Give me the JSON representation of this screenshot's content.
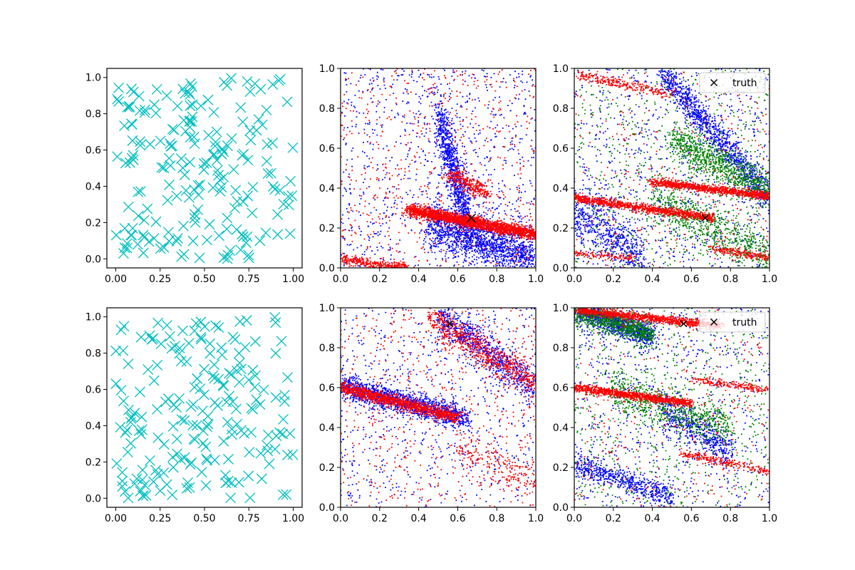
{
  "figure": {
    "background": "#ffffff"
  },
  "colors": {
    "cyan": "#00bfbf",
    "blue": "#0000ff",
    "red": "#ff0000",
    "green": "#008000",
    "truth": "#000000"
  },
  "chart_data": [
    {
      "id": "r0c0",
      "type": "scatter",
      "marker": "x-large",
      "color": "cyan",
      "xlim": [
        -0.05,
        1.05
      ],
      "ylim": [
        -0.05,
        1.05
      ],
      "xticks": [
        0,
        0.25,
        0.5,
        0.75,
        1.0
      ],
      "xtick_labels": [
        "0.00",
        "0.25",
        "0.50",
        "0.75",
        "1.00"
      ],
      "yticks": [
        0,
        0.2,
        0.4,
        0.6,
        0.8,
        1.0
      ],
      "ytick_labels": [
        "0.0",
        "0.2",
        "0.4",
        "0.6",
        "0.8",
        "1.0"
      ],
      "series": [
        {
          "kind": "uniform",
          "count": 200,
          "seed": 11
        }
      ]
    },
    {
      "id": "r0c1",
      "type": "scatter",
      "marker": "dot",
      "xlim": [
        0,
        1
      ],
      "ylim": [
        0,
        1
      ],
      "xticks": [
        0,
        0.2,
        0.4,
        0.6,
        0.8,
        1.0
      ],
      "xtick_labels": [
        "0.0",
        "0.2",
        "0.4",
        "0.6",
        "0.8",
        "1.0"
      ],
      "yticks": [
        0,
        0.2,
        0.4,
        0.6,
        0.8,
        1.0
      ],
      "ytick_labels": [
        "0.0",
        "0.2",
        "0.4",
        "0.6",
        "0.8",
        "1.0"
      ],
      "truth": {
        "x": 0.67,
        "y": 0.25,
        "size": "large"
      },
      "series": [
        {
          "color": "blue",
          "seed": 21,
          "clusters": [
            {
              "count": 1600,
              "x0": 0.45,
              "x1": 1.0,
              "y0": 0.22,
              "y1": 0.05,
              "spread": 0.06
            },
            {
              "count": 900,
              "x0": 0.5,
              "x1": 0.65,
              "y0": 0.75,
              "y1": 0.25,
              "spread": 0.08
            },
            {
              "count": 900,
              "kind": "uniform"
            }
          ]
        },
        {
          "color": "red",
          "seed": 22,
          "clusters": [
            {
              "count": 2200,
              "x0": 0.35,
              "x1": 1.0,
              "y0": 0.29,
              "y1": 0.17,
              "spread": 0.015
            },
            {
              "count": 350,
              "x0": 0.0,
              "x1": 0.35,
              "y0": 0.04,
              "y1": 0.0,
              "spread": 0.012
            },
            {
              "count": 300,
              "x0": 0.55,
              "x1": 0.75,
              "y0": 0.47,
              "y1": 0.38,
              "spread": 0.02
            },
            {
              "count": 600,
              "kind": "uniform"
            }
          ]
        }
      ]
    },
    {
      "id": "r0c2",
      "type": "scatter",
      "marker": "dot",
      "xlim": [
        0,
        1
      ],
      "ylim": [
        0,
        1
      ],
      "xticks": [
        0,
        0.2,
        0.4,
        0.6,
        0.8,
        1.0
      ],
      "xtick_labels": [
        "0.0",
        "0.2",
        "0.4",
        "0.6",
        "0.8",
        "1.0"
      ],
      "yticks": [
        0,
        0.2,
        0.4,
        0.6,
        0.8,
        1.0
      ],
      "ytick_labels": [
        "0.0",
        "0.2",
        "0.4",
        "0.6",
        "0.8",
        "1.0"
      ],
      "truth": {
        "x": 0.67,
        "y": 0.25,
        "size": "small"
      },
      "legend": {
        "label": "truth",
        "loc": "upper right"
      },
      "series": [
        {
          "color": "blue",
          "seed": 31,
          "clusters": [
            {
              "count": 1100,
              "x0": 0.45,
              "x1": 1.0,
              "y0": 0.98,
              "y1": 0.35,
              "spread": 0.04
            },
            {
              "count": 600,
              "x0": 0.0,
              "x1": 0.35,
              "y0": 0.3,
              "y1": 0.05,
              "spread": 0.07
            },
            {
              "count": 800,
              "kind": "uniform"
            }
          ]
        },
        {
          "color": "green",
          "seed": 32,
          "clusters": [
            {
              "count": 900,
              "x0": 0.5,
              "x1": 1.0,
              "y0": 0.65,
              "y1": 0.38,
              "spread": 0.05
            },
            {
              "count": 700,
              "x0": 0.4,
              "x1": 1.0,
              "y0": 0.35,
              "y1": 0.05,
              "spread": 0.06
            },
            {
              "count": 700,
              "kind": "uniform"
            }
          ]
        },
        {
          "color": "red",
          "seed": 33,
          "clusters": [
            {
              "count": 1000,
              "x0": 0.0,
              "x1": 0.7,
              "y0": 0.35,
              "y1": 0.25,
              "spread": 0.01
            },
            {
              "count": 1000,
              "x0": 0.4,
              "x1": 1.0,
              "y0": 0.43,
              "y1": 0.36,
              "spread": 0.01
            },
            {
              "count": 250,
              "x0": 0.0,
              "x1": 0.5,
              "y0": 0.97,
              "y1": 0.87,
              "spread": 0.012
            },
            {
              "count": 200,
              "x0": 0.7,
              "x1": 1.0,
              "y0": 0.1,
              "y1": 0.05,
              "spread": 0.01
            },
            {
              "count": 120,
              "x0": 0.0,
              "x1": 0.3,
              "y0": 0.07,
              "y1": 0.05,
              "spread": 0.008
            },
            {
              "count": 300,
              "kind": "uniform"
            }
          ]
        }
      ]
    },
    {
      "id": "r1c0",
      "type": "scatter",
      "marker": "x-large",
      "color": "cyan",
      "xlim": [
        -0.05,
        1.05
      ],
      "ylim": [
        -0.05,
        1.05
      ],
      "xticks": [
        0,
        0.25,
        0.5,
        0.75,
        1.0
      ],
      "xtick_labels": [
        "0.00",
        "0.25",
        "0.50",
        "0.75",
        "1.00"
      ],
      "yticks": [
        0,
        0.2,
        0.4,
        0.6,
        0.8,
        1.0
      ],
      "ytick_labels": [
        "0.0",
        "0.2",
        "0.4",
        "0.6",
        "0.8",
        "1.0"
      ],
      "series": [
        {
          "kind": "uniform",
          "count": 200,
          "seed": 12
        }
      ]
    },
    {
      "id": "r1c1",
      "type": "scatter",
      "marker": "dot",
      "xlim": [
        0,
        1
      ],
      "ylim": [
        0,
        1
      ],
      "xticks": [
        0,
        0.2,
        0.4,
        0.6,
        0.8,
        1.0
      ],
      "xtick_labels": [
        "0.0",
        "0.2",
        "0.4",
        "0.6",
        "0.8",
        "1.0"
      ],
      "yticks": [
        0,
        0.2,
        0.4,
        0.6,
        0.8,
        1.0
      ],
      "ytick_labels": [
        "0.0",
        "0.2",
        "0.4",
        "0.6",
        "0.8",
        "1.0"
      ],
      "truth": {
        "x": 0.56,
        "y": 0.92,
        "size": "small"
      },
      "series": [
        {
          "color": "blue",
          "seed": 41,
          "clusters": [
            {
              "count": 1500,
              "x0": 0.0,
              "x1": 0.65,
              "y0": 0.61,
              "y1": 0.44,
              "spread": 0.03
            },
            {
              "count": 800,
              "x0": 0.5,
              "x1": 1.0,
              "y0": 0.97,
              "y1": 0.6,
              "spread": 0.05
            },
            {
              "count": 700,
              "kind": "uniform"
            }
          ]
        },
        {
          "color": "red",
          "seed": 42,
          "clusters": [
            {
              "count": 1200,
              "x0": 0.0,
              "x1": 0.6,
              "y0": 0.6,
              "y1": 0.45,
              "spread": 0.015
            },
            {
              "count": 700,
              "x0": 0.45,
              "x1": 1.0,
              "y0": 0.95,
              "y1": 0.62,
              "spread": 0.04
            },
            {
              "count": 200,
              "x0": 0.6,
              "x1": 1.0,
              "y0": 0.3,
              "y1": 0.12,
              "spread": 0.04
            },
            {
              "count": 600,
              "kind": "uniform"
            }
          ]
        }
      ]
    },
    {
      "id": "r1c2",
      "type": "scatter",
      "marker": "dot",
      "xlim": [
        0,
        1
      ],
      "ylim": [
        0,
        1
      ],
      "xticks": [
        0,
        0.2,
        0.4,
        0.6,
        0.8,
        1.0
      ],
      "xtick_labels": [
        "0.0",
        "0.2",
        "0.4",
        "0.6",
        "0.8",
        "1.0"
      ],
      "yticks": [
        0,
        0.2,
        0.4,
        0.6,
        0.8,
        1.0
      ],
      "ytick_labels": [
        "0.0",
        "0.2",
        "0.4",
        "0.6",
        "0.8",
        "1.0"
      ],
      "truth": {
        "x": 0.56,
        "y": 0.92,
        "size": "small"
      },
      "legend": {
        "label": "truth",
        "loc": "upper right"
      },
      "series": [
        {
          "color": "blue",
          "seed": 51,
          "clusters": [
            {
              "count": 1000,
              "x0": 0.0,
              "x1": 0.4,
              "y0": 0.99,
              "y1": 0.86,
              "spread": 0.03
            },
            {
              "count": 600,
              "x0": 0.0,
              "x1": 0.5,
              "y0": 0.22,
              "y1": 0.05,
              "spread": 0.03
            },
            {
              "count": 500,
              "x0": 0.45,
              "x1": 0.8,
              "y0": 0.5,
              "y1": 0.28,
              "spread": 0.05
            },
            {
              "count": 700,
              "kind": "uniform"
            }
          ]
        },
        {
          "color": "green",
          "seed": 52,
          "clusters": [
            {
              "count": 900,
              "x0": 0.0,
              "x1": 0.4,
              "y0": 0.99,
              "y1": 0.87,
              "spread": 0.03
            },
            {
              "count": 700,
              "x0": 0.2,
              "x1": 0.8,
              "y0": 0.58,
              "y1": 0.4,
              "spread": 0.05
            },
            {
              "count": 700,
              "kind": "uniform"
            }
          ]
        },
        {
          "color": "red",
          "seed": 53,
          "clusters": [
            {
              "count": 1000,
              "x0": 0.0,
              "x1": 0.75,
              "y0": 0.99,
              "y1": 0.91,
              "spread": 0.01
            },
            {
              "count": 1000,
              "x0": 0.0,
              "x1": 0.6,
              "y0": 0.6,
              "y1": 0.52,
              "spread": 0.01
            },
            {
              "count": 250,
              "x0": 0.55,
              "x1": 1.0,
              "y0": 0.27,
              "y1": 0.18,
              "spread": 0.01
            },
            {
              "count": 200,
              "x0": 0.6,
              "x1": 1.0,
              "y0": 0.64,
              "y1": 0.59,
              "spread": 0.01
            },
            {
              "count": 300,
              "kind": "uniform"
            }
          ]
        }
      ]
    }
  ]
}
